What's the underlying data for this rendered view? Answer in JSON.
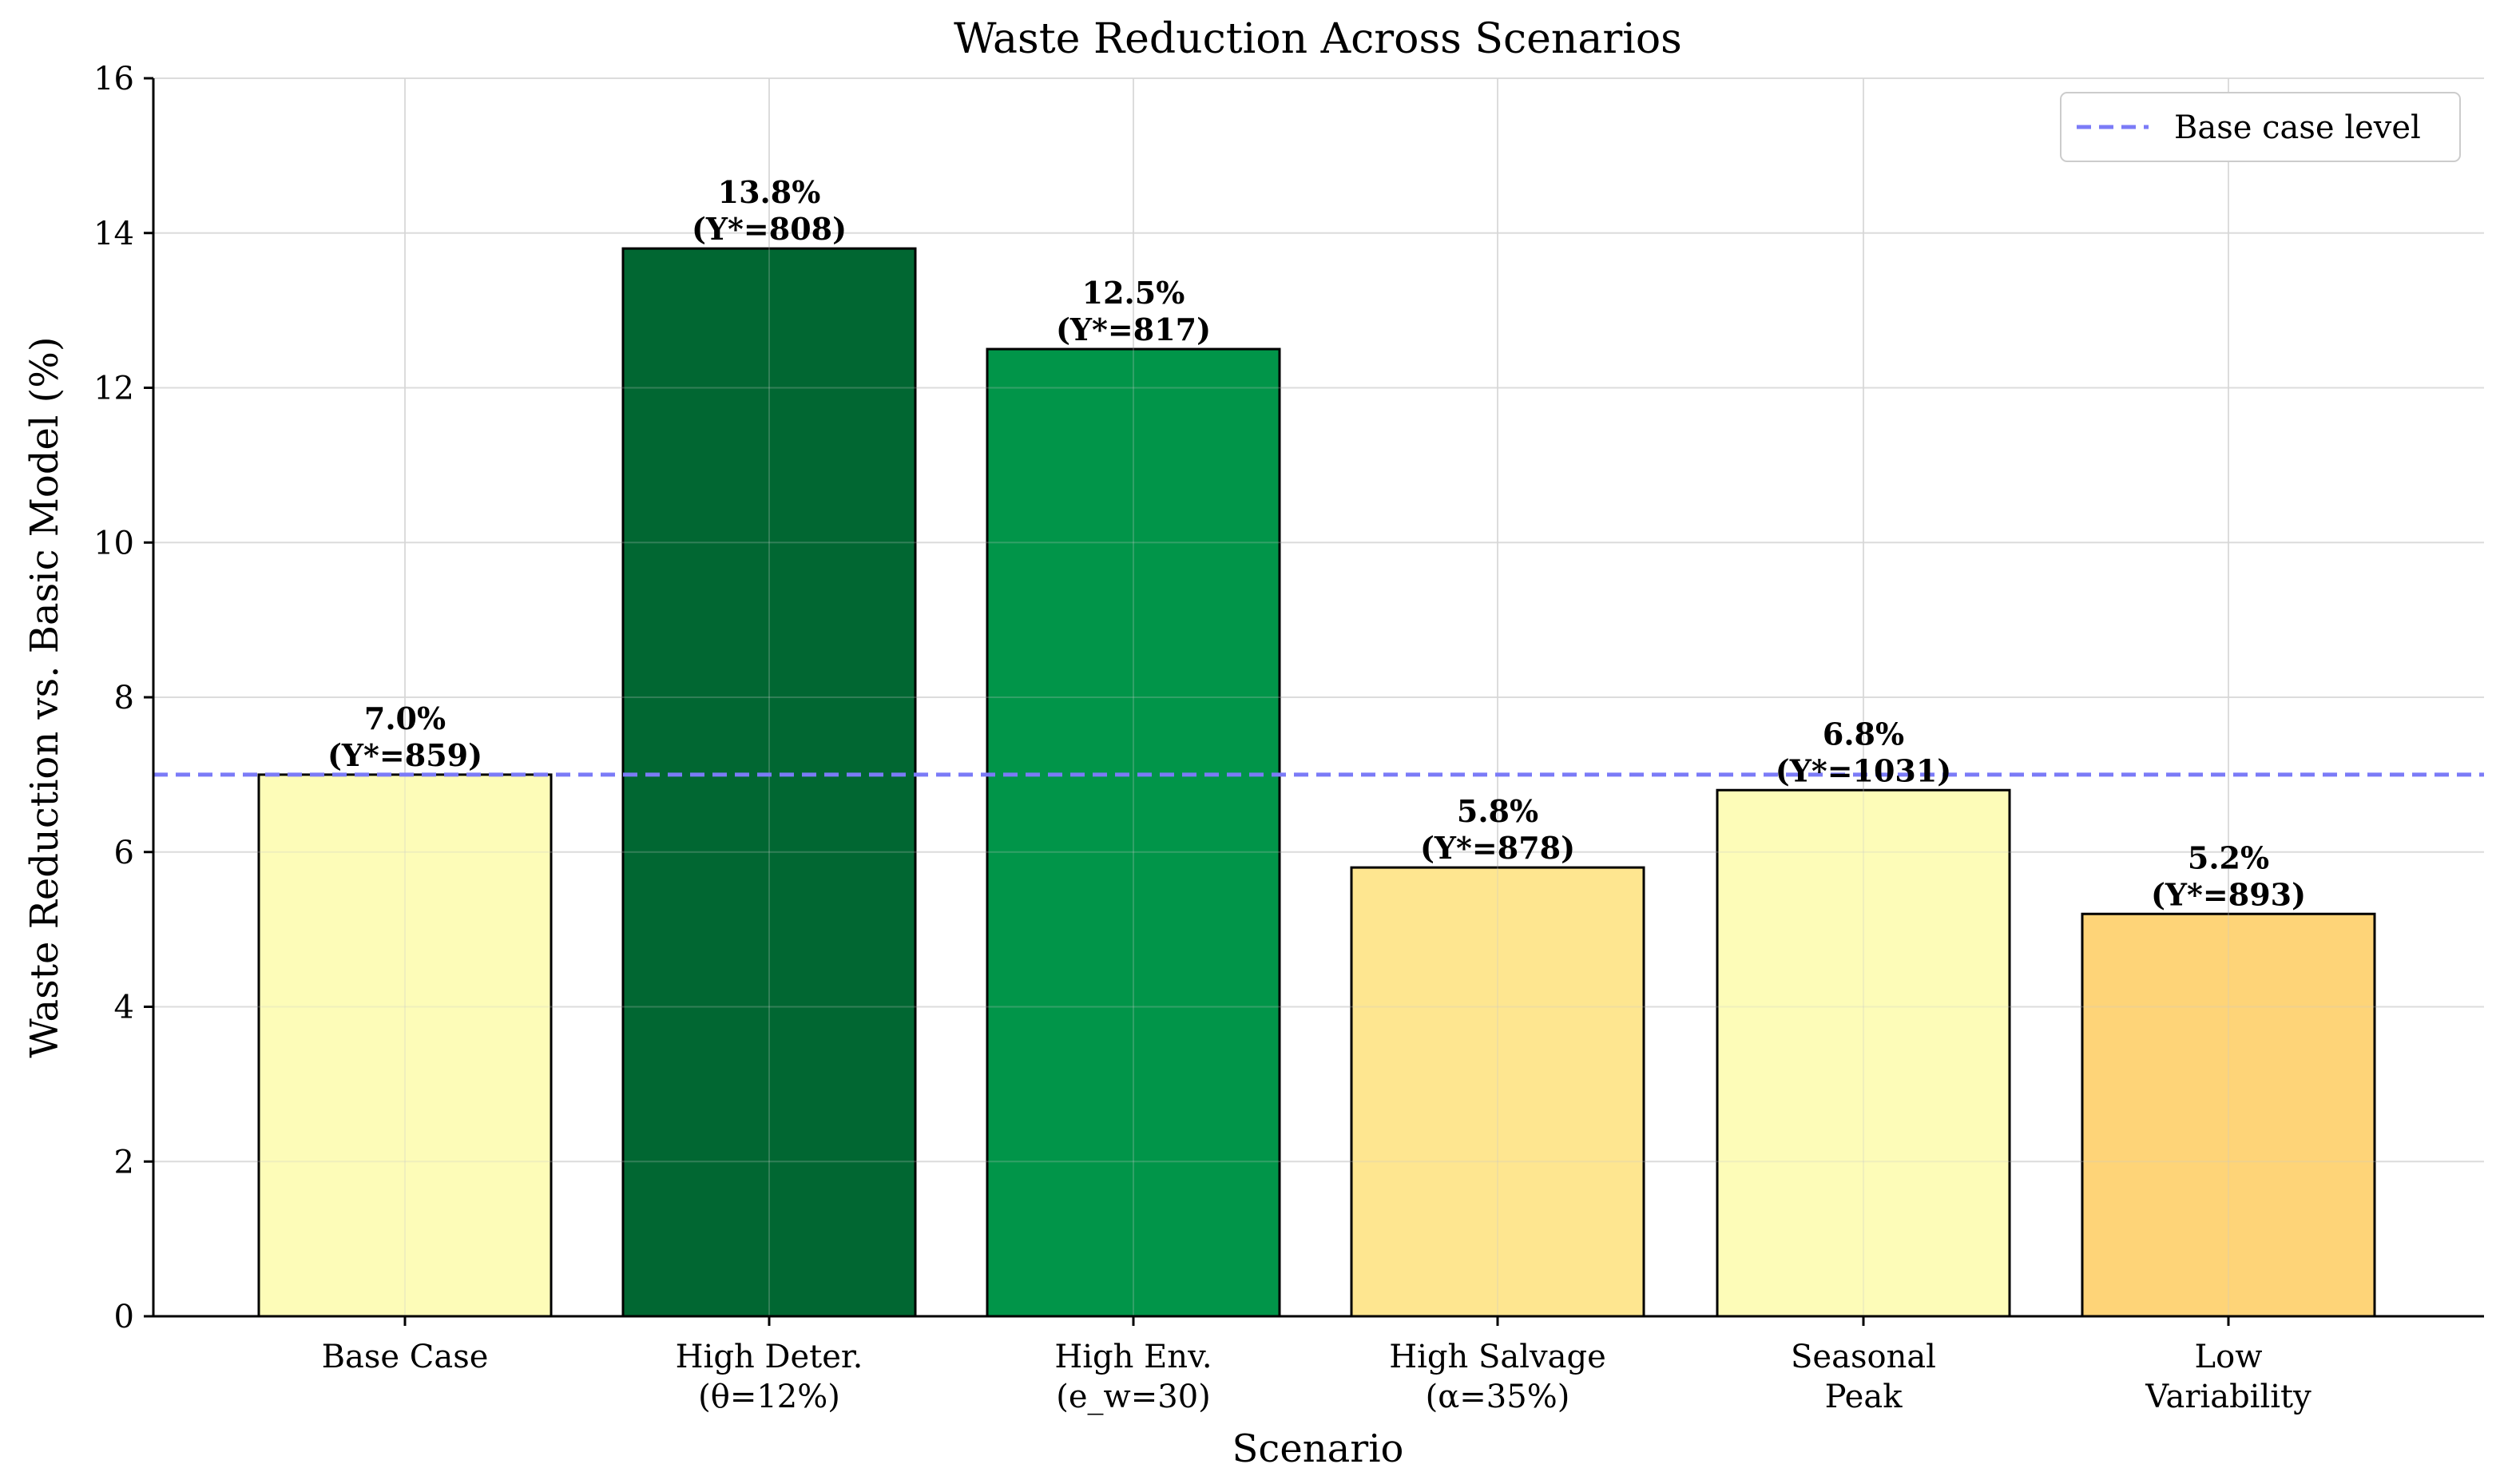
{
  "chart_data": {
    "type": "bar",
    "title": "Waste Reduction Across Scenarios",
    "xlabel": "Scenario",
    "ylabel": "Waste Reduction vs. Basic Model (%)",
    "ylim": [
      0,
      16
    ],
    "yticks": [
      0,
      2,
      4,
      6,
      8,
      10,
      12,
      14,
      16
    ],
    "ytick_labels": [
      "0",
      "2",
      "4",
      "6",
      "8",
      "10",
      "12",
      "14",
      "16"
    ],
    "grid": true,
    "legend_position": "top-right",
    "categories": [
      [
        "Base Case"
      ],
      [
        "High Deter.",
        "(θ=12%)"
      ],
      [
        "High Env.",
        "(e_w=30)"
      ],
      [
        "High Salvage",
        "(α=35%)"
      ],
      [
        "Seasonal",
        "Peak"
      ],
      [
        "Low",
        "Variability"
      ]
    ],
    "values": [
      7.0,
      13.8,
      12.5,
      5.8,
      6.8,
      5.2
    ],
    "data_labels": [
      [
        "7.0%",
        "(Y*=859)"
      ],
      [
        "13.8%",
        "(Y*=808)"
      ],
      [
        "12.5%",
        "(Y*=817)"
      ],
      [
        "5.8%",
        "(Y*=878)"
      ],
      [
        "6.8%",
        "(Y*=1031)"
      ],
      [
        "5.2%",
        "(Y*=893)"
      ]
    ],
    "bar_colors": [
      "#fdfcb8",
      "#016732",
      "#019549",
      "#fee690",
      "#fdfcb8",
      "#fed478"
    ],
    "reference_line": {
      "value": 7.0,
      "label": "Base case level",
      "color": "#7b7bf7",
      "style": "dashed"
    }
  }
}
